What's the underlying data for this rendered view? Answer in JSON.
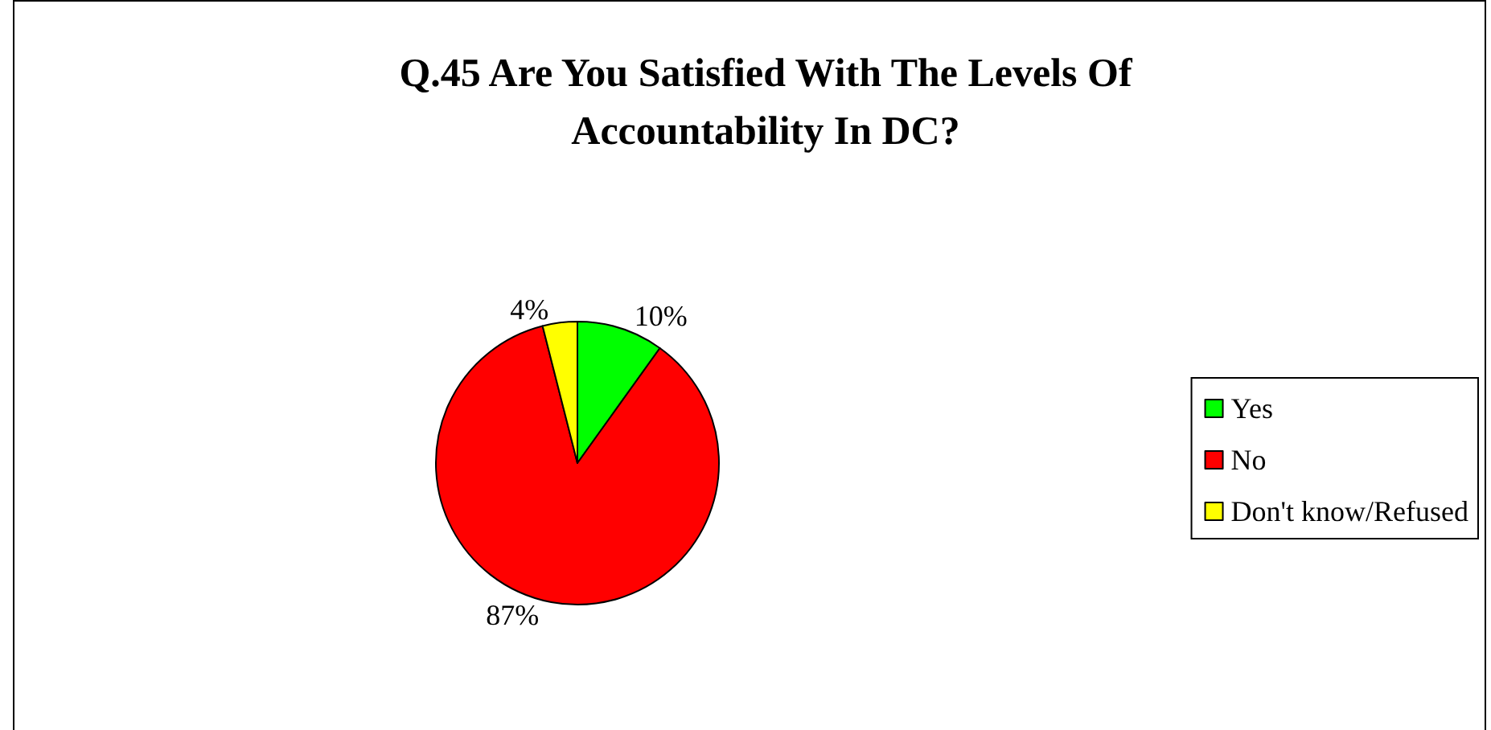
{
  "chart_data": {
    "type": "pie",
    "title": "Q.45 Are You Satisfied With The Levels Of\nAccountability In DC?",
    "categories": [
      "Yes",
      "No",
      "Don't know/Refused"
    ],
    "values": [
      10,
      87,
      4
    ],
    "colors": [
      "#00ff00",
      "#ff0000",
      "#ffff00"
    ],
    "value_labels": [
      "10%",
      "87%",
      "4%"
    ],
    "legend": "right"
  }
}
